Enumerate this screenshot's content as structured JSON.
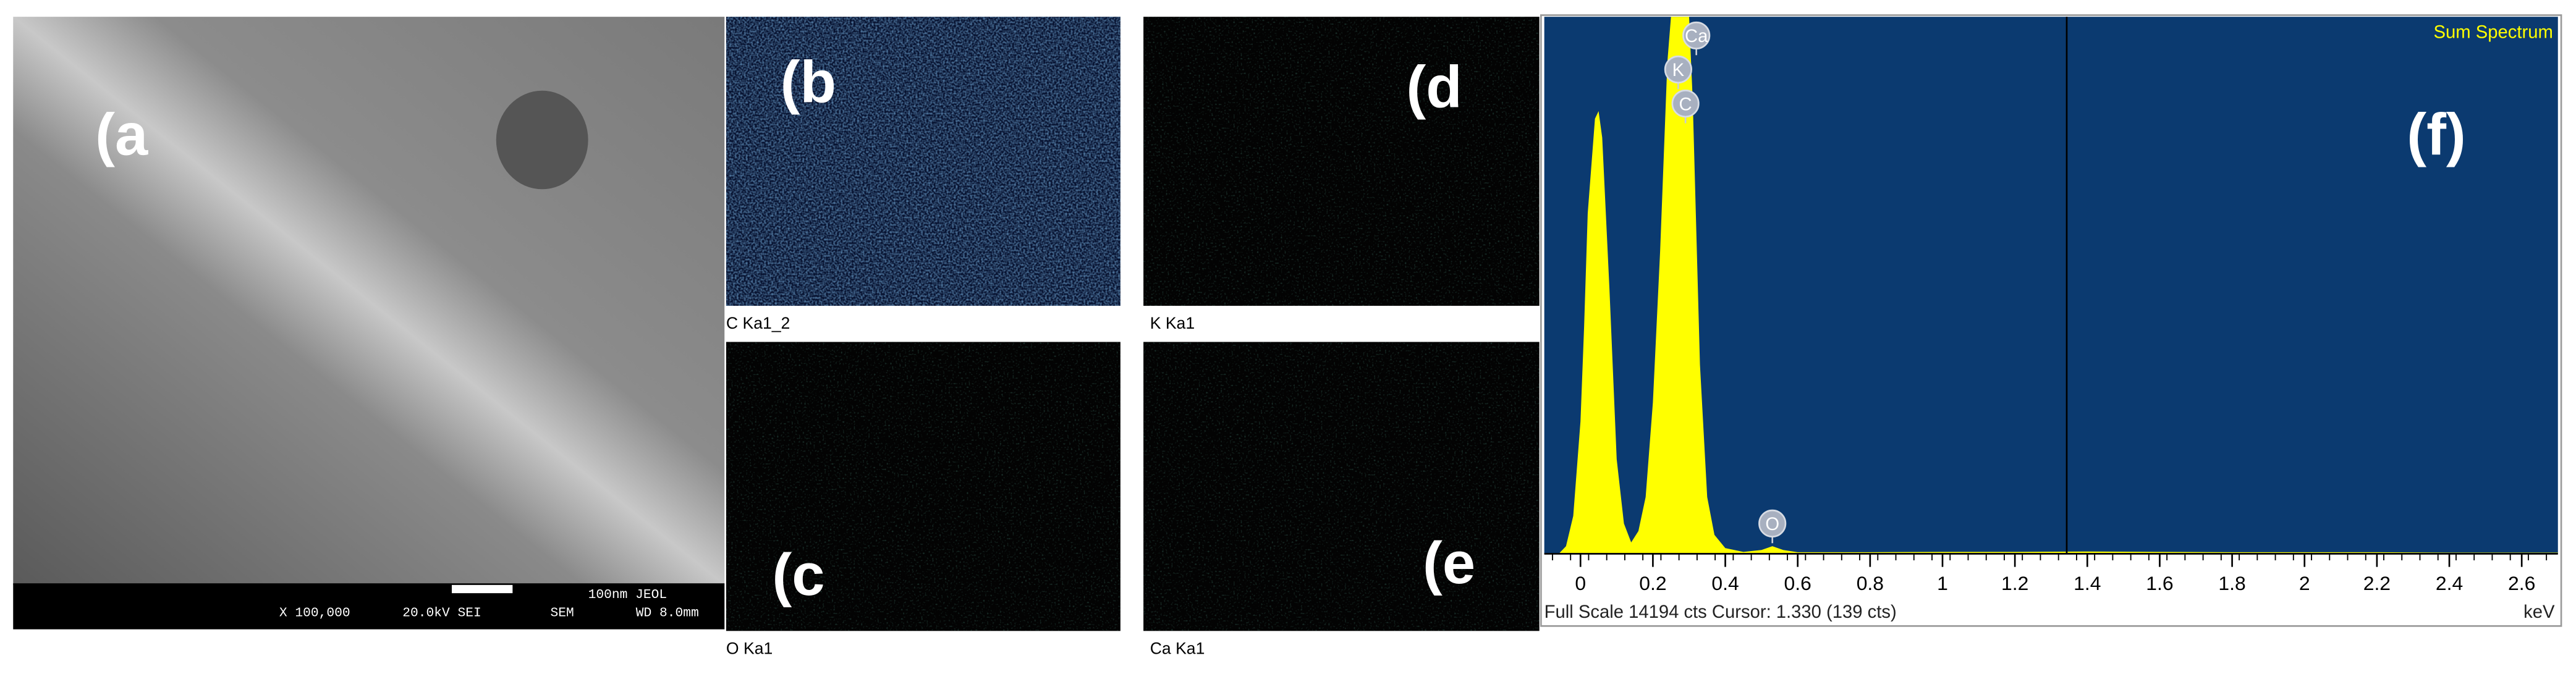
{
  "panels": {
    "a": {
      "label": "(a",
      "scale_bar": "100nm JEOL",
      "magnification": "X 100,000",
      "voltage": "20.0kV SEI",
      "mode": "SEM",
      "working_distance": "WD 8.0mm"
    },
    "b": {
      "label": "(b",
      "caption": "C Ka1_2"
    },
    "c": {
      "label": "(c",
      "caption": "O Ka1"
    },
    "d": {
      "label": "(d",
      "caption": "K Ka1"
    },
    "e": {
      "label": "(e",
      "caption": "Ca Ka1"
    }
  },
  "chart_data": {
    "type": "area",
    "title": "Sum Spectrum",
    "label": "(f)",
    "x_label": "keV",
    "footer": "Full Scale 14194 cts Cursor: 1.330  (139 cts)",
    "color": "#ffff00",
    "background": "#0b3a70",
    "xlim": [
      -0.1,
      2.7
    ],
    "ylim": [
      0,
      14194
    ],
    "xticks": [
      0,
      0.2,
      0.4,
      0.6,
      0.8,
      1,
      1.2,
      1.4,
      1.6,
      1.8,
      2,
      2.2,
      2.4,
      2.6
    ],
    "x": [
      -0.06,
      -0.04,
      -0.02,
      0,
      0.01,
      0.02,
      0.04,
      0.05,
      0.06,
      0.08,
      0.1,
      0.12,
      0.14,
      0.16,
      0.18,
      0.2,
      0.22,
      0.24,
      0.25,
      0.3,
      0.31,
      0.33,
      0.35,
      0.37,
      0.4,
      0.45,
      0.5,
      0.53,
      0.56,
      0.6,
      0.8,
      1.0,
      1.2,
      1.4,
      1.6,
      1.8,
      2.0,
      2.2,
      2.4,
      2.6,
      2.7
    ],
    "values": [
      0,
      200,
      1000,
      3500,
      6000,
      9000,
      11500,
      11700,
      11000,
      7000,
      2500,
      800,
      300,
      600,
      1500,
      4000,
      8000,
      13000,
      14194,
      14194,
      12000,
      5000,
      1500,
      500,
      150,
      50,
      100,
      200,
      100,
      40,
      40,
      50,
      50,
      60,
      50,
      40,
      40,
      40,
      30,
      30,
      30
    ],
    "annotations": [
      {
        "text": "Ca",
        "x": 0.32,
        "y": 13700
      },
      {
        "text": "K",
        "x": 0.27,
        "y": 12800
      },
      {
        "text": "C",
        "x": 0.29,
        "y": 11900
      },
      {
        "text": "O",
        "x": 0.53,
        "y": 800
      }
    ]
  }
}
